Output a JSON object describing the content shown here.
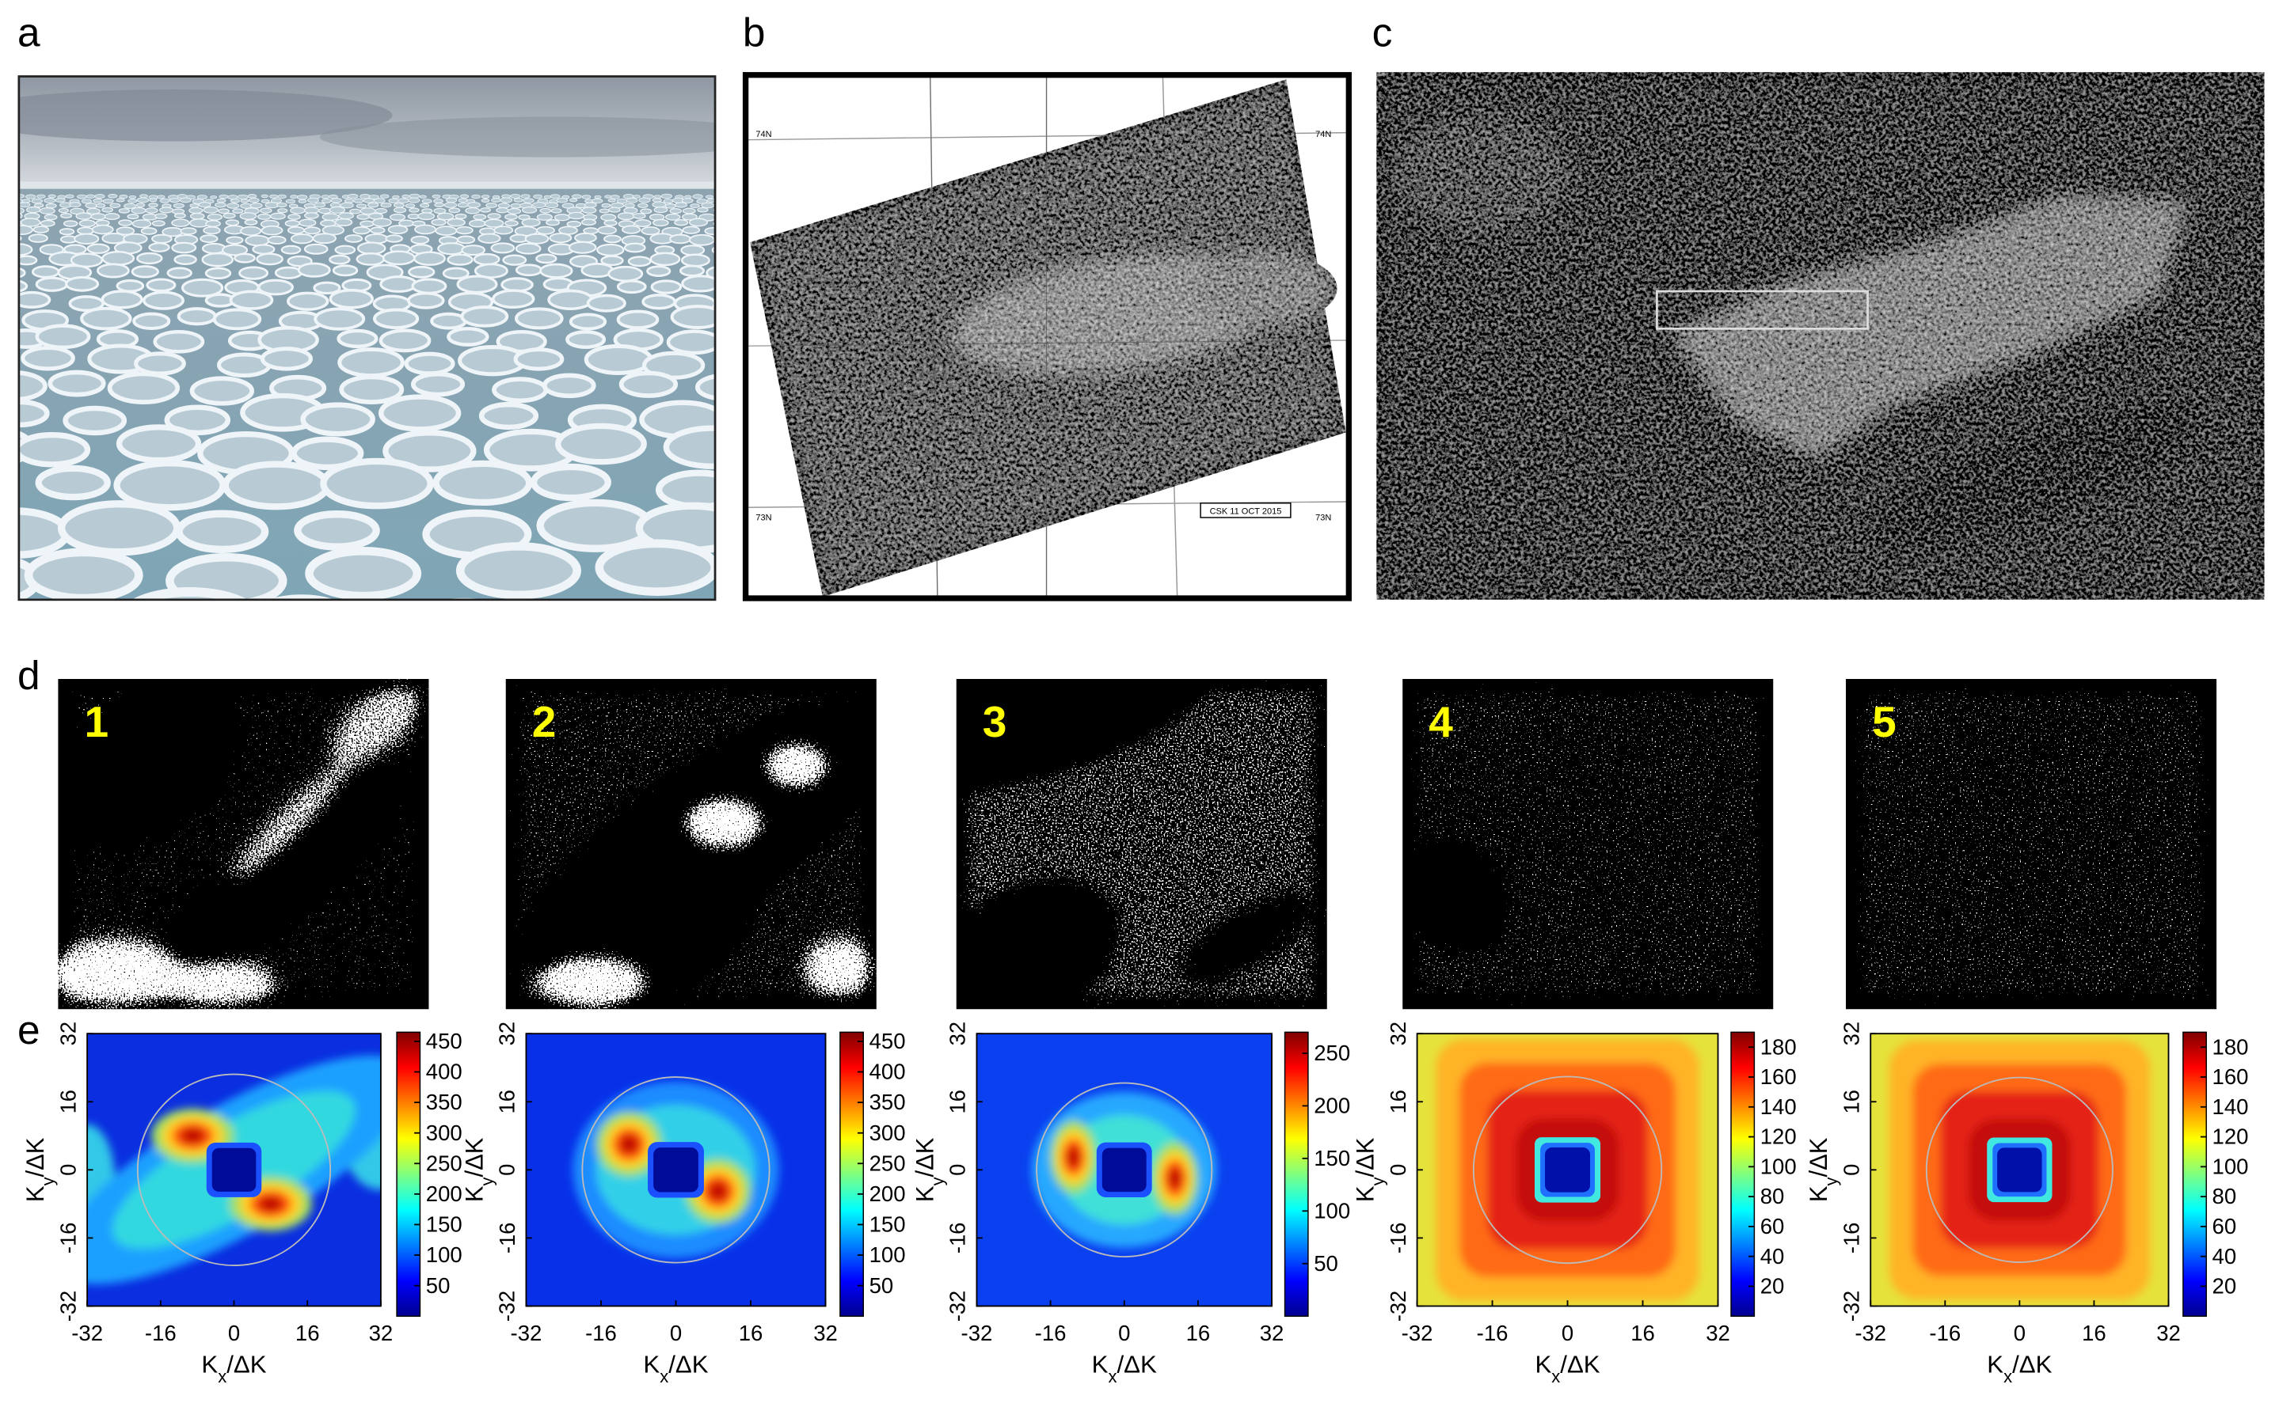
{
  "panel_labels": [
    "a",
    "b",
    "c",
    "d",
    "e"
  ],
  "map_labels": {
    "lat_top": "74N",
    "lat_bottom": "73N",
    "date": "CSK 11 OCT 2015"
  },
  "subpanel_numbers": [
    "1",
    "2",
    "3",
    "4",
    "5"
  ],
  "spectra": {
    "xlabel": {
      "main": "K",
      "sub": "x",
      "rest": "/ΔK"
    },
    "ylabel": {
      "main": "K",
      "sub": "y",
      "rest": "/ΔK"
    },
    "xlim": [
      -32,
      32
    ],
    "ylim": [
      -32,
      32
    ],
    "xticks": [
      -32,
      -16,
      0,
      16,
      32
    ],
    "yticks": [
      -32,
      -16,
      0,
      16,
      32
    ],
    "colorbars": [
      {
        "lim": [
          0,
          465
        ],
        "ticks": [
          50,
          100,
          150,
          200,
          250,
          300,
          350,
          400,
          450
        ]
      },
      {
        "lim": [
          0,
          465
        ],
        "ticks": [
          50,
          100,
          150,
          200,
          250,
          300,
          350,
          400,
          450
        ]
      },
      {
        "lim": [
          0,
          270
        ],
        "ticks": [
          50,
          100,
          150,
          200,
          250
        ]
      },
      {
        "lim": [
          0,
          190
        ],
        "ticks": [
          20,
          40,
          60,
          80,
          100,
          120,
          140,
          160,
          180
        ]
      },
      {
        "lim": [
          0,
          190
        ],
        "ticks": [
          20,
          40,
          60,
          80,
          100,
          120,
          140,
          160,
          180
        ]
      }
    ]
  }
}
